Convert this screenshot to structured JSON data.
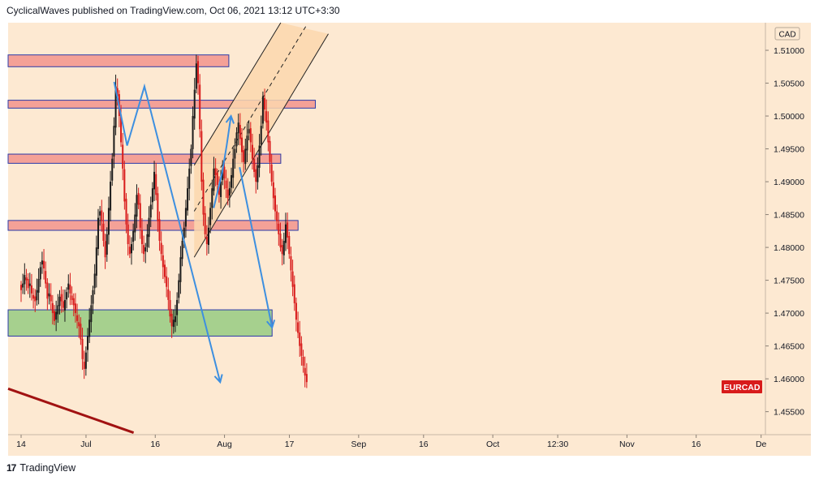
{
  "header": {
    "published_line": "CyclicalWaves published on TradingView.com, Oct 06, 2021 13:12 UTC+3:30"
  },
  "footer": {
    "brand_mark": "17",
    "brand_name": "TradingView"
  },
  "colors": {
    "background": "#fde9d2",
    "candle_up": "#1a1a1a",
    "candle_down": "#d81b1b",
    "resistance_zone": "#f4a197",
    "support_zone": "#a6d08e",
    "zone_border": "#2b3aa8",
    "arrow": "#3d8fe0",
    "trendline": "#a11212",
    "channel_fill": "#fbd7ae",
    "price_badge": "#d81b1b"
  },
  "chart_data": {
    "type": "candlestick",
    "symbol_badge": "EURCAD",
    "currency_label": "CAD",
    "ylim": [
      1.4515,
      1.5142
    ],
    "y_ticks": [
      1.51,
      1.505,
      1.5,
      1.495,
      1.49,
      1.485,
      1.48,
      1.475,
      1.47,
      1.465,
      1.46,
      1.455
    ],
    "y_tick_labels": [
      "1.51000",
      "1.50500",
      "1.50000",
      "1.49500",
      "1.49000",
      "1.48500",
      "1.48000",
      "1.47500",
      "1.47000",
      "1.46500",
      "1.46000",
      "1.45500"
    ],
    "x_tick_labels": [
      "14",
      "Jul",
      "16",
      "Aug",
      "17",
      "Sep",
      "16",
      "Oct",
      "12:30",
      "Nov",
      "16",
      "De"
    ],
    "x_tick_times": [
      0,
      15,
      31,
      47,
      62,
      78,
      93,
      109,
      124,
      140,
      156,
      171
    ],
    "xlim": [
      -3,
      172
    ],
    "last_price": 1.4595,
    "resistance_zones": [
      {
        "t1": -3,
        "t2": 48,
        "low": 1.5075,
        "high": 1.5093
      },
      {
        "t1": -3,
        "t2": 68,
        "low": 1.5012,
        "high": 1.5024
      },
      {
        "t1": -3,
        "t2": 60,
        "low": 1.4928,
        "high": 1.4942
      },
      {
        "t1": -3,
        "t2": 64,
        "low": 1.4826,
        "high": 1.4841
      }
    ],
    "support_zones": [
      {
        "t1": -3,
        "t2": 58,
        "low": 1.4665,
        "high": 1.4705
      }
    ],
    "trendline": {
      "t1": -3,
      "p1": 1.4585,
      "t2": 26,
      "p2": 1.4518
    },
    "channel": {
      "lower": {
        "t1": 40,
        "p1": 1.4785,
        "t2": 71,
        "p2": 1.5125
      },
      "upper": {
        "t1": 40,
        "p1": 1.4925,
        "t2": 60,
        "p2": 1.5142
      },
      "start_t": 40
    },
    "arrows": [
      {
        "points": [
          [
            21.5,
            1.5052
          ],
          [
            24.5,
            1.4955
          ],
          [
            28.5,
            1.5045
          ],
          [
            46,
            1.4595
          ]
        ]
      },
      {
        "points": [
          [
            44.5,
            1.486
          ],
          [
            46.5,
            1.4915
          ],
          [
            47.5,
            1.4955
          ],
          [
            48.5,
            1.5
          ]
        ]
      },
      {
        "points": [
          [
            50.5,
            1.4922
          ],
          [
            58,
            1.4678
          ]
        ]
      }
    ],
    "closes": [
      1.4735,
      1.4745,
      1.4758,
      1.475,
      1.4738,
      1.4745,
      1.473,
      1.4722,
      1.4718,
      1.4735,
      1.4752,
      1.477,
      1.478,
      1.4768,
      1.4745,
      1.4722,
      1.473,
      1.4718,
      1.47,
      1.4688,
      1.4702,
      1.4712,
      1.4725,
      1.4718,
      1.4708,
      1.472,
      1.4732,
      1.4745,
      1.473,
      1.472,
      1.4712,
      1.47,
      1.4688,
      1.468,
      1.466,
      1.463,
      1.4615,
      1.464,
      1.4665,
      1.469,
      1.4712,
      1.4735,
      1.476,
      1.48,
      1.4845,
      1.4855,
      1.484,
      1.481,
      1.4785,
      1.482,
      1.486,
      1.49,
      1.4935,
      1.4985,
      1.5045,
      1.503,
      1.5,
      1.496,
      1.492,
      1.487,
      1.4835,
      1.4805,
      1.479,
      1.4805,
      1.4825,
      1.485,
      1.488,
      1.4865,
      1.483,
      1.4805,
      1.479,
      1.48,
      1.482,
      1.4845,
      1.4865,
      1.489,
      1.4915,
      1.488,
      1.484,
      1.481,
      1.479,
      1.477,
      1.4755,
      1.474,
      1.472,
      1.4695,
      1.468,
      1.469,
      1.4695,
      1.472,
      1.475,
      1.4785,
      1.481,
      1.483,
      1.486,
      1.489,
      1.492,
      1.495,
      1.5,
      1.504,
      1.508,
      1.505,
      1.498,
      1.49,
      1.485,
      1.482,
      1.4805,
      1.483,
      1.486,
      1.489,
      1.492,
      1.491,
      1.4895,
      1.488,
      1.49,
      1.492,
      1.4905,
      1.489,
      1.4875,
      1.489,
      1.491,
      1.4935,
      1.495,
      1.4975,
      1.499,
      1.4965,
      1.4945,
      1.493,
      1.495,
      1.497,
      1.498,
      1.496,
      1.4935,
      1.4915,
      1.49,
      1.4925,
      1.4955,
      1.4985,
      1.503,
      1.501,
      1.499,
      1.496,
      1.493,
      1.49,
      1.4875,
      1.4855,
      1.484,
      1.482,
      1.48,
      1.479,
      1.481,
      1.4835,
      1.4815,
      1.479,
      1.4765,
      1.474,
      1.4715,
      1.469,
      1.467,
      1.465,
      1.4635,
      1.462,
      1.4605,
      1.4595
    ]
  }
}
